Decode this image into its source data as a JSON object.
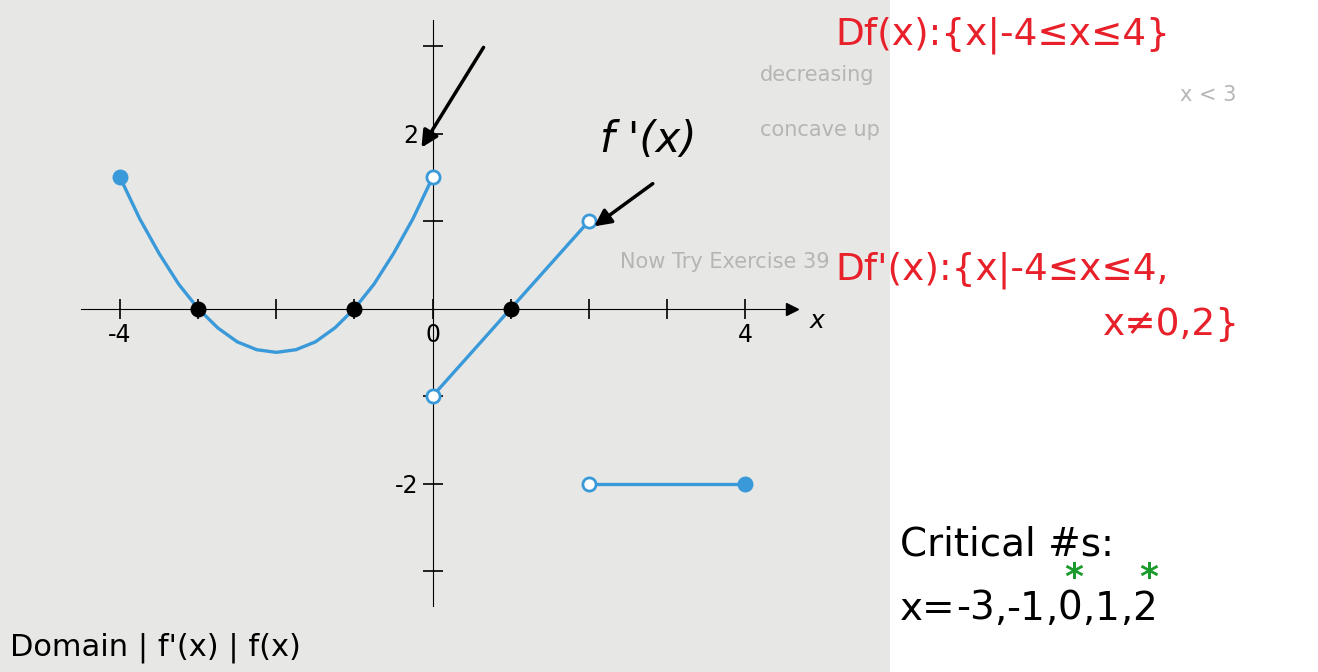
{
  "chart_data": {
    "type": "line",
    "x_label": "x",
    "xlim": [
      -4.5,
      4.6
    ],
    "ylim": [
      -3.4,
      3.3
    ],
    "xticks": [
      -4,
      0,
      4
    ],
    "yticks": [
      -2,
      2
    ],
    "x_tick_marks": [
      -4,
      -3,
      -2,
      -1,
      0,
      1,
      2,
      3,
      4
    ],
    "y_tick_marks": [
      -3,
      -2,
      -1,
      1,
      2,
      3
    ],
    "grid": false,
    "series": [
      {
        "type": "line",
        "color": "#3a9ad9",
        "x": [
          -4,
          -3.75,
          -3.5,
          -3.25,
          -3,
          -2.75,
          -2.5,
          -2.25,
          -2,
          -1.75,
          -1.5,
          -1.25,
          -1,
          -0.75,
          -0.5,
          -0.25,
          0
        ],
        "values": [
          1.5,
          1.03,
          0.63,
          0.28,
          0,
          -0.22,
          -0.38,
          -0.47,
          -0.5,
          -0.47,
          -0.38,
          -0.22,
          0,
          0.28,
          0.63,
          1.03,
          1.5
        ]
      },
      {
        "type": "line",
        "color": "#3a9ad9",
        "x": [
          0,
          2
        ],
        "values": [
          -1,
          1
        ]
      },
      {
        "type": "line",
        "color": "#3a9ad9",
        "x": [
          2,
          4
        ],
        "values": [
          -2,
          -2
        ]
      },
      {
        "type": "scatter",
        "color": "#3a9ad9",
        "marker": "filled",
        "x": [
          -4,
          4
        ],
        "values": [
          1.5,
          -2
        ]
      },
      {
        "type": "scatter",
        "color": "#3a9ad9",
        "marker": "open",
        "x": [
          0,
          0,
          2,
          2
        ],
        "values": [
          1.5,
          -1,
          1,
          -2
        ]
      },
      {
        "type": "scatter",
        "color": "#000000",
        "marker": "filled",
        "x": [
          -3,
          -1,
          1
        ],
        "values": [
          0,
          0,
          0
        ]
      }
    ]
  },
  "notes": {
    "curve_label": "f '(x)",
    "domain_f": "Df(x):{x|-4≤x≤4}",
    "domain_f_prime": [
      "Df'(x):{x|-4≤x≤4,",
      "x≠0,2}"
    ],
    "critical_title": "Critical #s:",
    "critical_numbers": {
      "prefix": "x=",
      "values": [
        -3,
        -1,
        0,
        1,
        2
      ],
      "separator": ",",
      "starred": [
        0,
        2
      ],
      "star": "*"
    },
    "table_header": "Domain | f'(x) | f(x)",
    "background_text": [
      "x < 3",
      "decreasing",
      "concave up",
      "Now Try Exercise 39"
    ]
  }
}
